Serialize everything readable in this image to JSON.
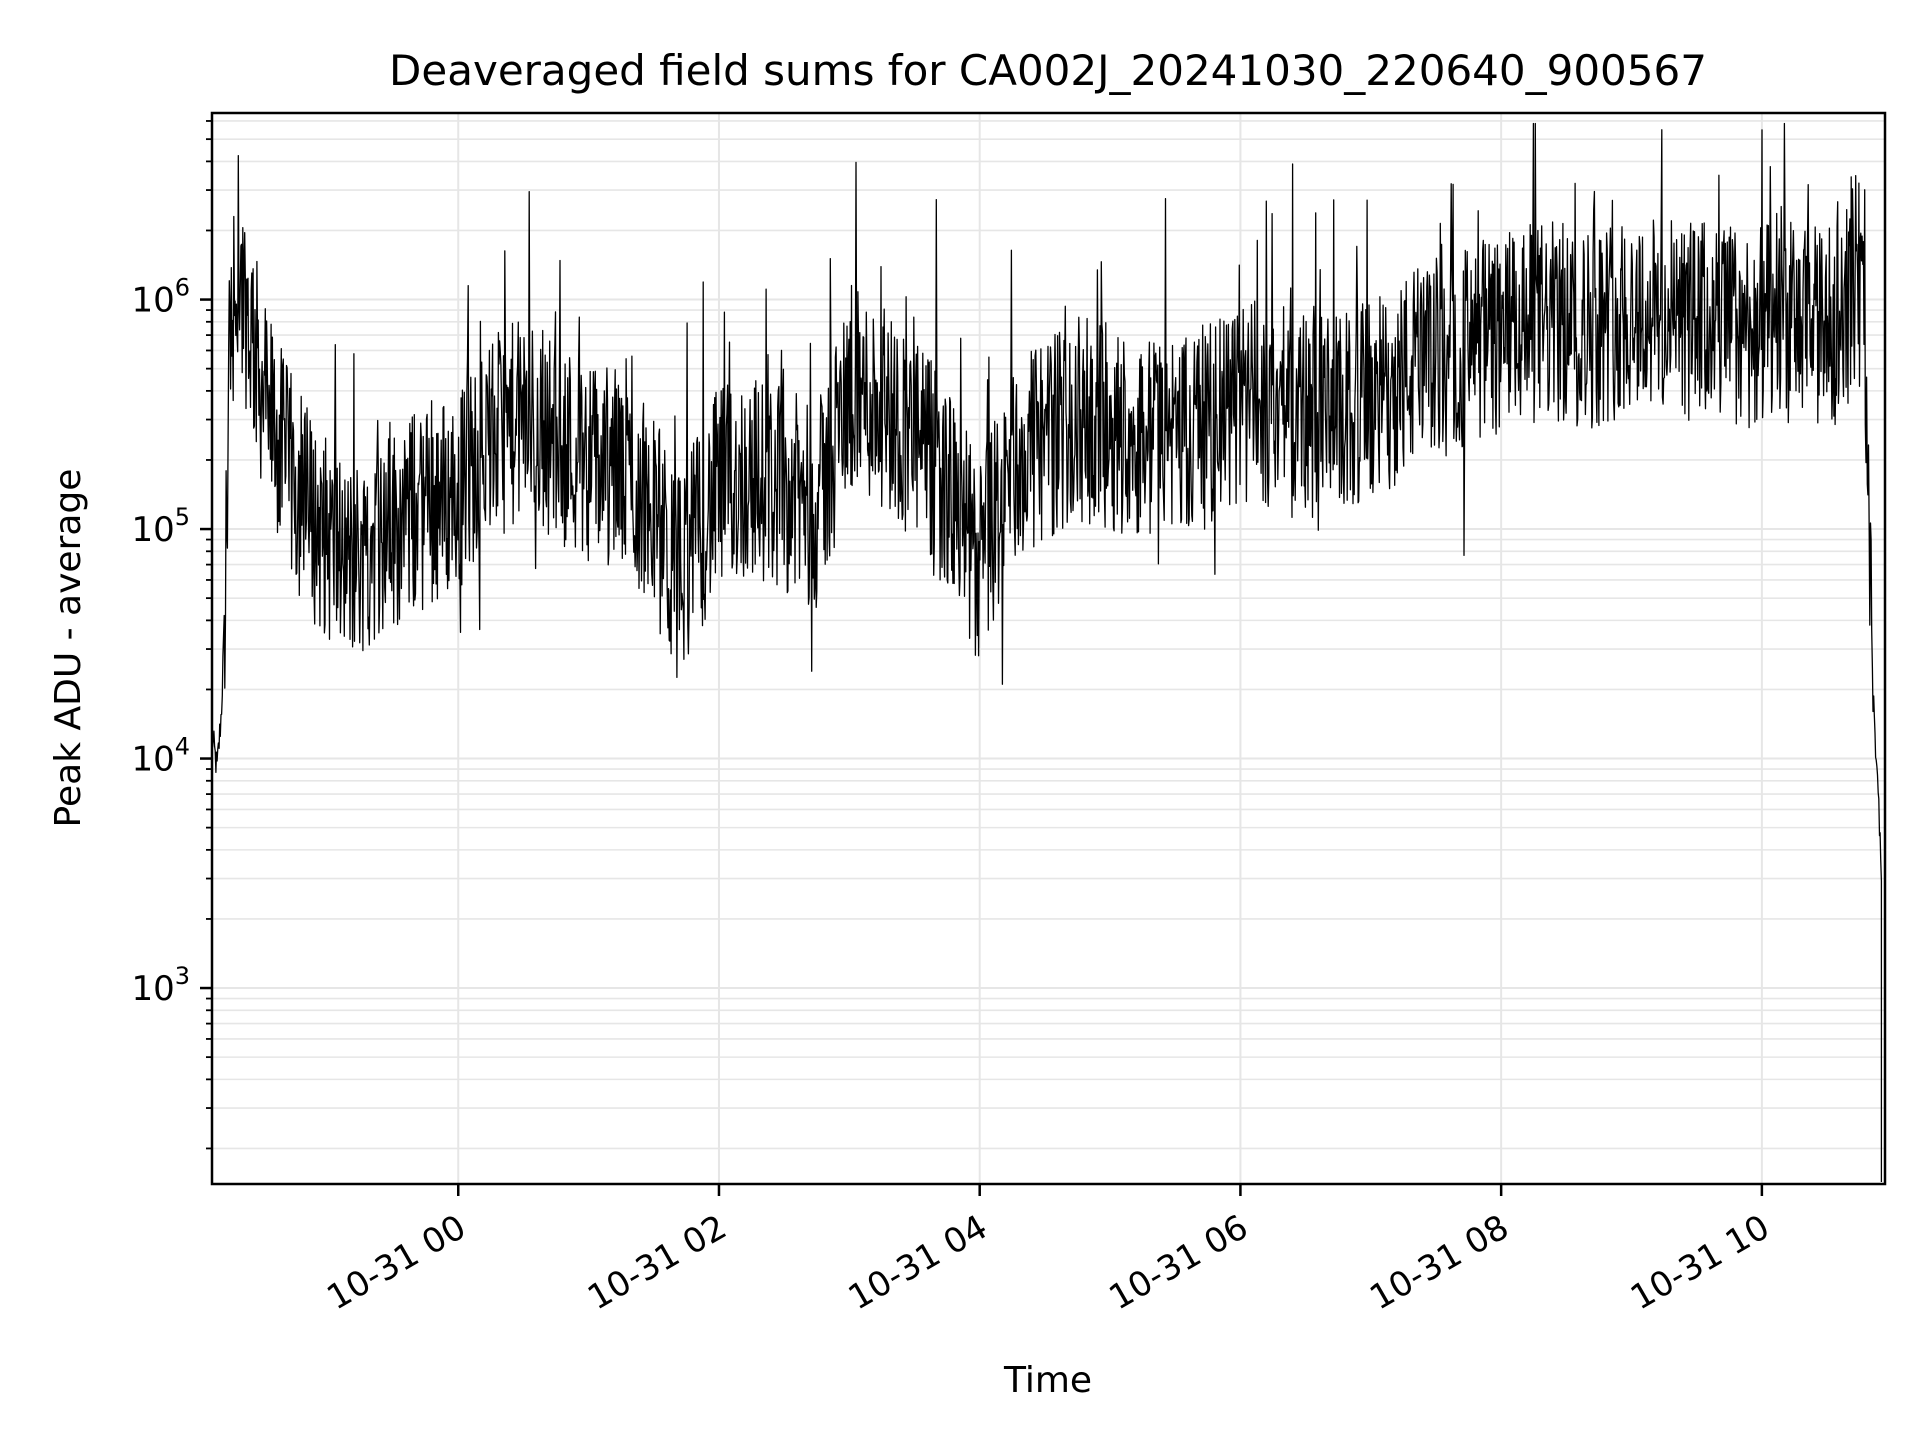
{
  "chart_data": {
    "type": "line",
    "title": "Deaveraged field sums for CA002J_20241030_220640_900567",
    "xlabel": "Time",
    "ylabel": "Peak ADU - average",
    "yscale": "log",
    "ylim": [
      140,
      6500000
    ],
    "xlim": [
      "2024-10-30 22:06:40",
      "2024-10-31 10:56:40"
    ],
    "grid": true,
    "line_color": "#000000",
    "x_ticks": [
      {
        "value": "2024-10-31 00:00:00",
        "label": "10-31 00"
      },
      {
        "value": "2024-10-31 02:00:00",
        "label": "10-31 02"
      },
      {
        "value": "2024-10-31 04:00:00",
        "label": "10-31 04"
      },
      {
        "value": "2024-10-31 06:00:00",
        "label": "10-31 06"
      },
      {
        "value": "2024-10-31 08:00:00",
        "label": "10-31 08"
      },
      {
        "value": "2024-10-31 10:00:00",
        "label": "10-31 10"
      }
    ],
    "y_ticks": [
      {
        "value": 1000,
        "base": "10",
        "exp": "3"
      },
      {
        "value": 10000,
        "base": "10",
        "exp": "4"
      },
      {
        "value": 100000,
        "base": "10",
        "exp": "5"
      },
      {
        "value": 1000000,
        "base": "10",
        "exp": "6"
      }
    ],
    "series": [
      {
        "x": [
          "2024-10-30 22:07",
          "2024-10-30 22:09",
          "2024-10-30 22:11",
          "2024-10-30 22:13",
          "2024-10-30 22:15",
          "2024-10-30 22:20",
          "2024-10-30 22:25",
          "2024-10-30 22:30",
          "2024-10-30 22:40",
          "2024-10-30 22:50",
          "2024-10-30 23:00",
          "2024-10-30 23:10",
          "2024-10-30 23:20",
          "2024-10-30 23:30",
          "2024-10-30 23:40",
          "2024-10-30 23:50",
          "2024-10-31 00:00",
          "2024-10-31 00:15",
          "2024-10-31 00:30",
          "2024-10-31 00:45",
          "2024-10-31 01:00",
          "2024-10-31 01:15",
          "2024-10-31 01:30",
          "2024-10-31 01:40",
          "2024-10-31 02:00",
          "2024-10-31 02:15",
          "2024-10-31 02:30",
          "2024-10-31 02:45",
          "2024-10-31 03:00",
          "2024-10-31 03:15",
          "2024-10-31 03:30",
          "2024-10-31 03:45",
          "2024-10-31 04:00",
          "2024-10-31 04:15",
          "2024-10-31 04:30",
          "2024-10-31 04:45",
          "2024-10-31 05:00",
          "2024-10-31 05:15",
          "2024-10-31 05:30",
          "2024-10-31 05:45",
          "2024-10-31 06:00",
          "2024-10-31 06:20",
          "2024-10-31 06:40",
          "2024-10-31 07:00",
          "2024-10-31 07:20",
          "2024-10-31 07:40",
          "2024-10-31 08:00",
          "2024-10-31 08:20",
          "2024-10-31 08:40",
          "2024-10-31 09:00",
          "2024-10-31 09:20",
          "2024-10-31 09:40",
          "2024-10-31 10:00",
          "2024-10-31 10:15",
          "2024-10-31 10:30",
          "2024-10-31 10:40",
          "2024-10-31 10:45",
          "2024-10-31 10:48",
          "2024-10-31 10:51",
          "2024-10-31 10:53",
          "2024-10-31 10:55"
        ],
        "y": [
          12000,
          9000,
          16000,
          60000,
          900000,
          1200000,
          700000,
          400000,
          200000,
          120000,
          90000,
          70000,
          85000,
          100000,
          120000,
          130000,
          150000,
          250000,
          300000,
          250000,
          200000,
          180000,
          120000,
          60000,
          150000,
          170000,
          150000,
          120000,
          400000,
          350000,
          250000,
          150000,
          70000,
          180000,
          250000,
          300000,
          280000,
          250000,
          260000,
          280000,
          350000,
          350000,
          300000,
          350000,
          500000,
          600000,
          700000,
          800000,
          750000,
          900000,
          800000,
          800000,
          750000,
          800000,
          700000,
          1000000,
          1500000,
          500000,
          20000,
          9000,
          3000
        ]
      }
    ]
  }
}
